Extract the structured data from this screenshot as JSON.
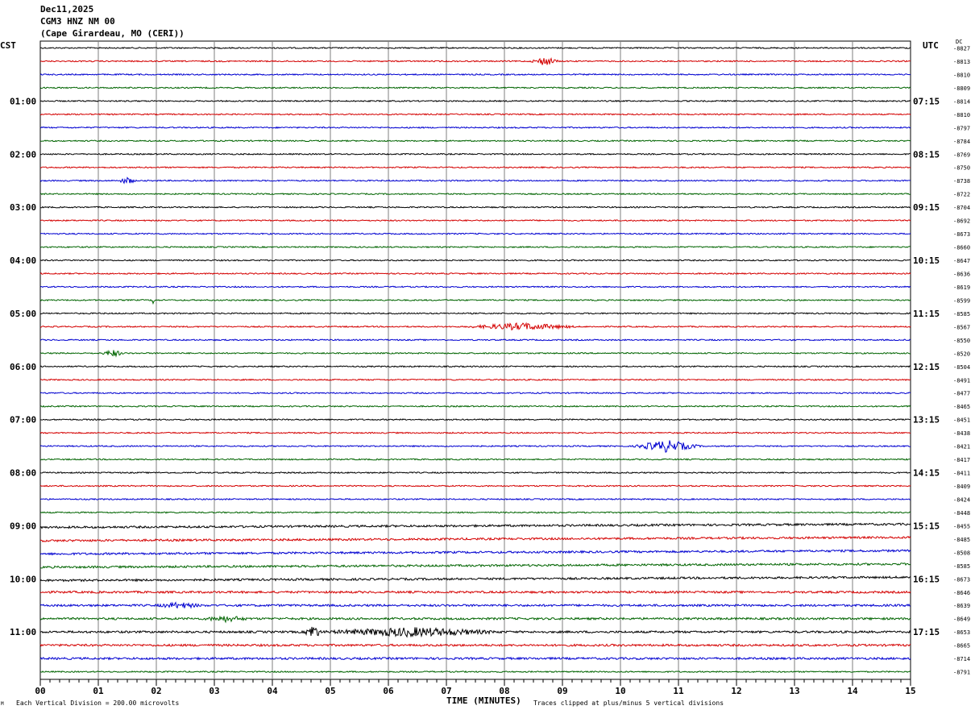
{
  "header": {
    "date": "Dec11,2025",
    "station": "CGM3 HNZ NM 00",
    "location": "(Cape Girardeau, MO (CERI))"
  },
  "left_tz": "CST",
  "right_tz": "UTC",
  "dc_label": "DC",
  "footer": {
    "scale": "Each Vertical Division =  200.00 microvolts",
    "clip": "Traces clipped at plus/minus 5 vertical divisions",
    "mark": "M"
  },
  "colors": {
    "trace": [
      "#000000",
      "#d40000",
      "#0000d0",
      "#006400"
    ],
    "grid": "#7f7f7f"
  },
  "chart_data": {
    "type": "line",
    "title": "CGM3 HNZ NM 00",
    "xlabel": "TIME (MINUTES)",
    "ylabel": "",
    "xlim": [
      0,
      15
    ],
    "x_ticks": [
      "00",
      "01",
      "02",
      "03",
      "04",
      "05",
      "06",
      "07",
      "08",
      "09",
      "10",
      "11",
      "12",
      "13",
      "14",
      "15"
    ],
    "left_hour_labels": [
      "01:00",
      "02:00",
      "03:00",
      "04:00",
      "05:00",
      "06:00",
      "07:00",
      "08:00",
      "09:00",
      "10:00",
      "11:00"
    ],
    "right_hour_labels": [
      "07:15",
      "08:15",
      "09:15",
      "10:15",
      "11:15",
      "12:15",
      "13:15",
      "14:15",
      "15:15",
      "16:15",
      "17:15"
    ],
    "dc_offsets": [
      -8827,
      -8813,
      -8810,
      -8809,
      -8814,
      -8810,
      -8797,
      -8784,
      -8769,
      -8750,
      -8738,
      -8722,
      -8704,
      -8692,
      -8673,
      -8660,
      -8647,
      -8636,
      -8619,
      -8599,
      -8585,
      -8567,
      -8550,
      -8520,
      -8504,
      -8491,
      -8477,
      -8465,
      -8451,
      -8438,
      -8421,
      -8417,
      -8411,
      -8409,
      -8424,
      -8448,
      -8455,
      -8485,
      -8508,
      -8585,
      -8673,
      -8646,
      -8639,
      -8649,
      -8653,
      -8665,
      -8714,
      -8791
    ],
    "events": [
      {
        "row": 1,
        "minute": 8.7,
        "amp": 5,
        "width": 0.25
      },
      {
        "row": 10,
        "minute": 1.5,
        "amp": 4,
        "width": 0.15
      },
      {
        "row": 19,
        "minute": 1.95,
        "amp": 5,
        "width": 0.04
      },
      {
        "row": 21,
        "minute": 8.3,
        "amp": 4,
        "width": 1.0
      },
      {
        "row": 23,
        "minute": 1.25,
        "amp": 4,
        "width": 0.2
      },
      {
        "row": 30,
        "minute": 10.8,
        "amp": 7,
        "width": 0.6
      },
      {
        "row": 42,
        "minute": 2.4,
        "amp": 3,
        "width": 0.4
      },
      {
        "row": 43,
        "minute": 3.2,
        "amp": 3,
        "width": 0.4
      },
      {
        "row": 44,
        "minute": 4.7,
        "amp": 9,
        "width": 0.15
      },
      {
        "row": 44,
        "minute": 6.4,
        "amp": 5,
        "width": 1.6
      }
    ]
  }
}
